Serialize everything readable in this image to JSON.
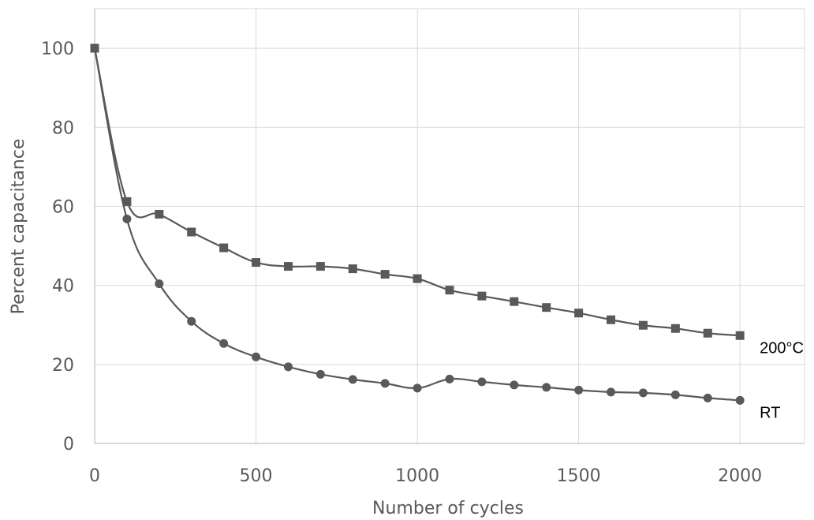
{
  "chart_data": {
    "type": "line",
    "title": "",
    "xlabel": "Number of cycles",
    "ylabel": "Percent capacitance",
    "xlim": [
      0,
      2200
    ],
    "ylim": [
      0,
      110
    ],
    "x_ticks": [
      "0",
      "500",
      "1000",
      "1500",
      "2000"
    ],
    "y_ticks": [
      "0",
      "20",
      "40",
      "60",
      "80",
      "100"
    ],
    "grid": true,
    "x": [
      0,
      100,
      200,
      300,
      400,
      500,
      600,
      700,
      800,
      900,
      1000,
      1100,
      1200,
      1300,
      1400,
      1500,
      1600,
      1700,
      1800,
      1900,
      2000
    ],
    "series": [
      {
        "name": "200°C",
        "marker": "square",
        "color": "#595959",
        "values": [
          100,
          61.2,
          58.0,
          53.5,
          49.5,
          45.8,
          44.8,
          44.8,
          44.2,
          42.8,
          41.7,
          38.8,
          37.3,
          35.9,
          34.4,
          33.0,
          31.3,
          29.9,
          29.1,
          27.9,
          27.3
        ]
      },
      {
        "name": "RT",
        "marker": "circle",
        "color": "#595959",
        "values": [
          100,
          56.8,
          40.4,
          30.9,
          25.3,
          21.9,
          19.4,
          17.5,
          16.2,
          15.2,
          14.0,
          16.3,
          15.6,
          14.8,
          14.2,
          13.5,
          13.0,
          12.8,
          12.3,
          11.5,
          10.9
        ]
      }
    ]
  }
}
